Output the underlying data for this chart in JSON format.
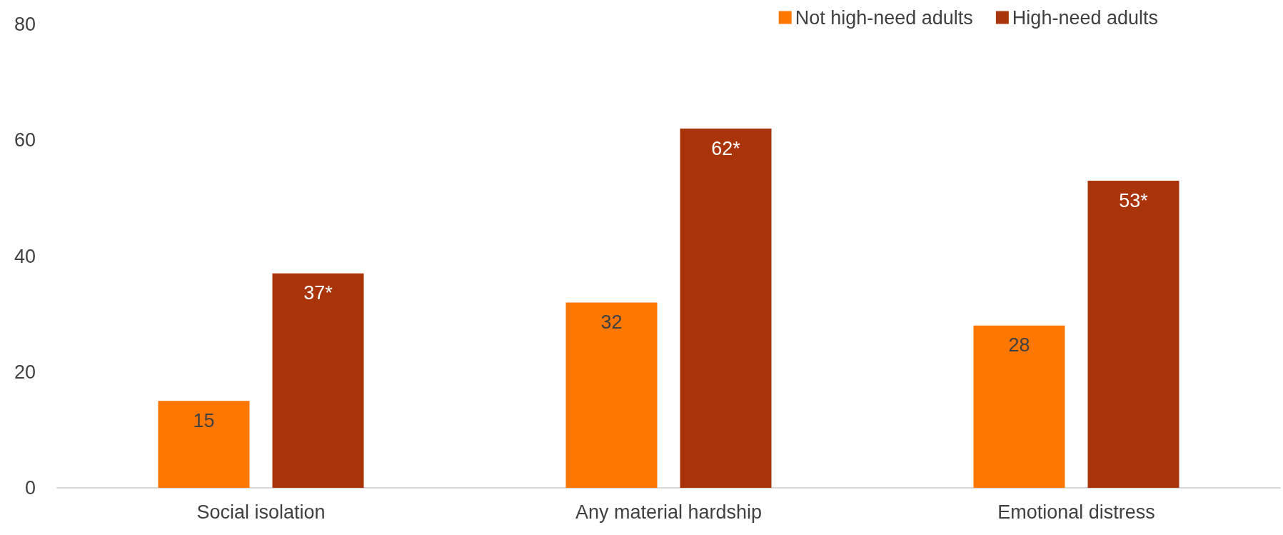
{
  "chart_data": {
    "type": "bar",
    "categories": [
      "Social isolation",
      "Any material hardship",
      "Emotional distress"
    ],
    "series": [
      {
        "name": "Not high-need adults",
        "color": "#fe7701",
        "values": [
          15,
          32,
          28
        ],
        "value_labels": [
          "15",
          "32",
          "28"
        ]
      },
      {
        "name": "High-need adults",
        "color": "#aa340a",
        "values": [
          37,
          62,
          53
        ],
        "value_labels": [
          "37*",
          "62*",
          "53*"
        ]
      }
    ],
    "ylim": [
      0,
      80
    ],
    "yticks": [
      0,
      20,
      40,
      60,
      80
    ],
    "grid": false,
    "legend": "top right"
  }
}
